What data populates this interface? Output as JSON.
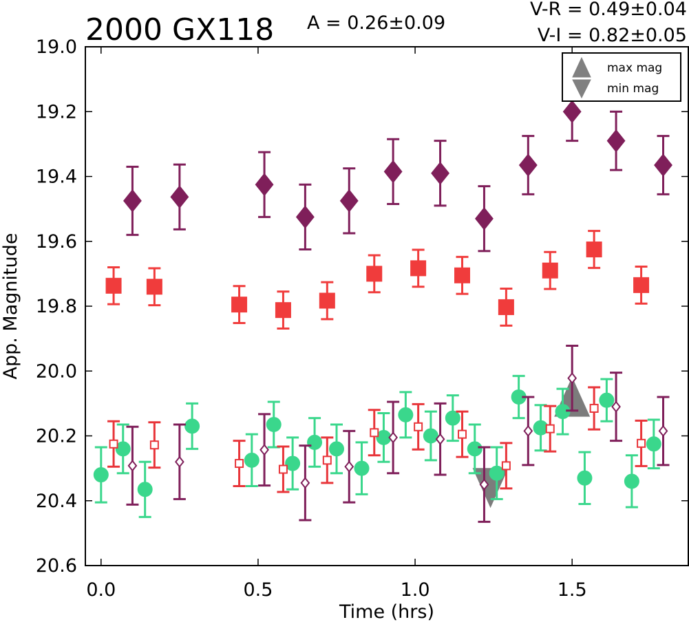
{
  "chart_data": {
    "type": "scatter",
    "title": "2000 GX118",
    "amplitude_text": "A  = 0.26±0.09",
    "color_text": [
      "V-R = 0.49±0.04",
      "V-I  = 0.82±0.05"
    ],
    "xlabel": "Time (hrs)",
    "ylabel": "App. Magnitude",
    "xlim": [
      -0.05,
      1.87
    ],
    "ylim": [
      20.6,
      19.0
    ],
    "y_inverted": true,
    "xticks": [
      "0.0",
      "0.5",
      "1.0",
      "1.5"
    ],
    "yticks": [
      "19.0",
      "19.2",
      "19.4",
      "19.6",
      "19.8",
      "20.0",
      "20.2",
      "20.4",
      "20.6"
    ],
    "legend": {
      "position": "top-right",
      "entries": [
        {
          "label": "max mag",
          "marker": "triangle-up"
        },
        {
          "label": "min mag",
          "marker": "triangle-down"
        }
      ]
    },
    "markers": [
      {
        "kind": "max",
        "x": 1.5,
        "y": 20.09
      },
      {
        "kind": "min",
        "x": 1.24,
        "y": 20.35
      }
    ],
    "series": [
      {
        "marker": "diamond-filled",
        "color": "#7f1f5a",
        "points": [
          [
            0.1,
            19.475,
            0.105
          ],
          [
            0.25,
            19.463,
            0.1
          ],
          [
            0.52,
            19.425,
            0.1
          ],
          [
            0.65,
            19.525,
            0.1
          ],
          [
            0.79,
            19.475,
            0.1
          ],
          [
            0.93,
            19.385,
            0.1
          ],
          [
            1.08,
            19.39,
            0.1
          ],
          [
            1.22,
            19.53,
            0.1
          ],
          [
            1.36,
            19.365,
            0.09
          ],
          [
            1.5,
            19.2,
            0.09
          ],
          [
            1.64,
            19.29,
            0.09
          ],
          [
            1.79,
            19.365,
            0.09
          ]
        ]
      },
      {
        "marker": "square-filled",
        "color": "#f03c3c",
        "points": [
          [
            0.04,
            19.737,
            0.057
          ],
          [
            0.17,
            19.74,
            0.057
          ],
          [
            0.44,
            19.795,
            0.057
          ],
          [
            0.58,
            19.812,
            0.057
          ],
          [
            0.72,
            19.783,
            0.057
          ],
          [
            0.87,
            19.7,
            0.057
          ],
          [
            1.01,
            19.683,
            0.057
          ],
          [
            1.15,
            19.705,
            0.057
          ],
          [
            1.29,
            19.803,
            0.057
          ],
          [
            1.43,
            19.69,
            0.057
          ],
          [
            1.57,
            19.625,
            0.057
          ],
          [
            1.72,
            19.735,
            0.057
          ]
        ]
      },
      {
        "marker": "circle-filled",
        "color": "#3ad78c",
        "points": [
          [
            0.0,
            20.32,
            0.085
          ],
          [
            0.07,
            20.24,
            0.075
          ],
          [
            0.14,
            20.365,
            0.085
          ],
          [
            0.29,
            20.17,
            0.07
          ],
          [
            0.48,
            20.275,
            0.08
          ],
          [
            0.55,
            20.165,
            0.07
          ],
          [
            0.61,
            20.285,
            0.08
          ],
          [
            0.68,
            20.22,
            0.075
          ],
          [
            0.75,
            20.24,
            0.075
          ],
          [
            0.83,
            20.3,
            0.08
          ],
          [
            0.9,
            20.205,
            0.075
          ],
          [
            0.97,
            20.135,
            0.07
          ],
          [
            1.05,
            20.2,
            0.075
          ],
          [
            1.12,
            20.145,
            0.07
          ],
          [
            1.19,
            20.24,
            0.075
          ],
          [
            1.26,
            20.315,
            0.08
          ],
          [
            1.33,
            20.08,
            0.065
          ],
          [
            1.4,
            20.175,
            0.07
          ],
          [
            1.47,
            20.125,
            0.07
          ],
          [
            1.54,
            20.33,
            0.08
          ],
          [
            1.61,
            20.09,
            0.065
          ],
          [
            1.69,
            20.34,
            0.08
          ],
          [
            1.76,
            20.225,
            0.075
          ]
        ]
      },
      {
        "marker": "square-open",
        "color": "#e8353a",
        "points": [
          [
            0.04,
            20.225,
            0.07
          ],
          [
            0.17,
            20.228,
            0.07
          ],
          [
            0.44,
            20.285,
            0.07
          ],
          [
            0.58,
            20.303,
            0.07
          ],
          [
            0.72,
            20.275,
            0.07
          ],
          [
            0.87,
            20.19,
            0.07
          ],
          [
            1.01,
            20.172,
            0.07
          ],
          [
            1.15,
            20.195,
            0.07
          ],
          [
            1.29,
            20.292,
            0.07
          ],
          [
            1.43,
            20.178,
            0.07
          ],
          [
            1.57,
            20.115,
            0.065
          ],
          [
            1.72,
            20.223,
            0.07
          ]
        ]
      },
      {
        "marker": "diamond-open",
        "color": "#7f1f5a",
        "points": [
          [
            0.1,
            20.292,
            0.12
          ],
          [
            0.25,
            20.28,
            0.115
          ],
          [
            0.52,
            20.243,
            0.11
          ],
          [
            0.65,
            20.345,
            0.115
          ],
          [
            0.79,
            20.295,
            0.11
          ],
          [
            0.93,
            20.205,
            0.11
          ],
          [
            1.08,
            20.21,
            0.11
          ],
          [
            1.22,
            20.35,
            0.115
          ],
          [
            1.36,
            20.185,
            0.105
          ],
          [
            1.5,
            20.022,
            0.1
          ],
          [
            1.64,
            20.11,
            0.105
          ],
          [
            1.79,
            20.185,
            0.105
          ]
        ]
      }
    ]
  }
}
